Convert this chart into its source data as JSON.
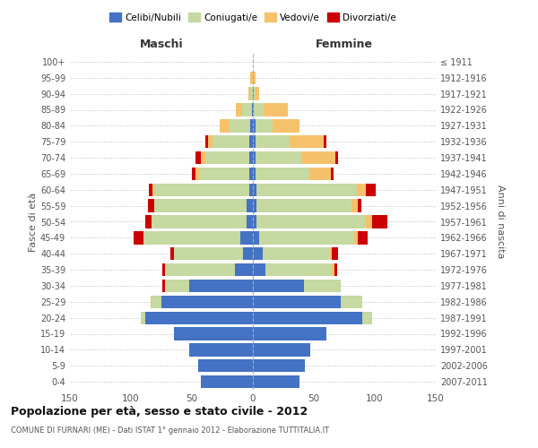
{
  "age_groups": [
    "0-4",
    "5-9",
    "10-14",
    "15-19",
    "20-24",
    "25-29",
    "30-34",
    "35-39",
    "40-44",
    "45-49",
    "50-54",
    "55-59",
    "60-64",
    "65-69",
    "70-74",
    "75-79",
    "80-84",
    "85-89",
    "90-94",
    "95-99",
    "100+"
  ],
  "birth_years": [
    "2007-2011",
    "2002-2006",
    "1997-2001",
    "1992-1996",
    "1987-1991",
    "1982-1986",
    "1977-1981",
    "1972-1976",
    "1967-1971",
    "1962-1966",
    "1957-1961",
    "1952-1956",
    "1947-1951",
    "1942-1946",
    "1937-1941",
    "1932-1936",
    "1927-1931",
    "1922-1926",
    "1917-1921",
    "1912-1916",
    "≤ 1911"
  ],
  "male": {
    "celibi": [
      43,
      45,
      52,
      65,
      88,
      75,
      52,
      15,
      8,
      10,
      5,
      5,
      3,
      3,
      3,
      3,
      2,
      1,
      0,
      0,
      0
    ],
    "coniugati": [
      0,
      0,
      0,
      0,
      4,
      8,
      20,
      57,
      57,
      80,
      78,
      76,
      78,
      41,
      36,
      30,
      17,
      8,
      2,
      0,
      0
    ],
    "vedovi": [
      0,
      0,
      0,
      0,
      0,
      1,
      0,
      0,
      0,
      0,
      0,
      0,
      1,
      3,
      4,
      4,
      8,
      5,
      2,
      2,
      0
    ],
    "divorziati": [
      0,
      0,
      0,
      0,
      0,
      0,
      2,
      2,
      3,
      8,
      5,
      5,
      3,
      3,
      4,
      2,
      0,
      0,
      0,
      0,
      0
    ]
  },
  "female": {
    "nubili": [
      38,
      43,
      47,
      60,
      90,
      72,
      42,
      10,
      8,
      5,
      3,
      3,
      3,
      2,
      2,
      2,
      2,
      1,
      1,
      0,
      0
    ],
    "coniugate": [
      0,
      0,
      0,
      0,
      8,
      18,
      30,
      55,
      55,
      78,
      90,
      78,
      82,
      44,
      38,
      28,
      14,
      8,
      1,
      0,
      0
    ],
    "vedove": [
      0,
      0,
      0,
      0,
      0,
      0,
      0,
      2,
      2,
      3,
      5,
      5,
      8,
      18,
      28,
      28,
      22,
      20,
      3,
      2,
      0
    ],
    "divorziate": [
      0,
      0,
      0,
      0,
      0,
      0,
      0,
      2,
      5,
      8,
      12,
      3,
      8,
      2,
      2,
      2,
      0,
      0,
      0,
      0,
      0
    ]
  },
  "colors": {
    "celibi": "#4472c4",
    "coniugati": "#c5d9a0",
    "vedovi": "#f5c26b",
    "divorziati": "#cc0000"
  },
  "xlim": 150,
  "title": "Popolazione per età, sesso e stato civile - 2012",
  "subtitle": "COMUNE DI FURNARI (ME) - Dati ISTAT 1° gennaio 2012 - Elaborazione TUTTITALIA.IT",
  "xlabel_left": "Maschi",
  "xlabel_right": "Femmine",
  "ylabel": "Fasce di età",
  "ylabel_right": "Anni di nascita",
  "legend_labels": [
    "Celibi/Nubili",
    "Coniugati/e",
    "Vedovi/e",
    "Divorziati/e"
  ]
}
